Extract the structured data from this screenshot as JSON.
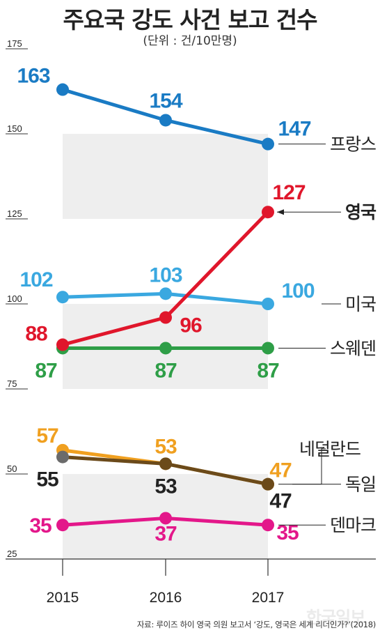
{
  "title": "주요국 강도 사건 보고 건수",
  "unit": "(단위 : 건/10만명)",
  "source": "자료: 루이즈 하이 영국 의원 보고서 ‘강도, 영국은 세계 리더인가?’(2018)",
  "watermark": "한국일보",
  "colors": {
    "france": "#1a7bc4",
    "uk": "#e0162b",
    "usa": "#3aa8e0",
    "sweden": "#2e9e47",
    "netherlands": "#f0a020",
    "germany": "#6b4a1a",
    "germany_2015_marker": "#6b6b6b",
    "denmark": "#e3178a",
    "band": "#eeeeee",
    "axis": "#333333"
  },
  "chart_data": {
    "type": "line",
    "title": "주요국 강도 사건 보고 건수",
    "subtitle": "(단위 : 건/10만명)",
    "xlabel": "",
    "ylabel": "",
    "x": [
      "2015",
      "2016",
      "2017"
    ],
    "ylim": [
      25,
      175
    ],
    "yticks": [
      "175",
      "150",
      "125",
      "100",
      "75",
      "50",
      "25"
    ],
    "grid": false,
    "legend": "direct labels at right end of lines",
    "series": [
      {
        "name": "프랑스",
        "key": "france",
        "values": [
          163,
          154,
          147
        ],
        "labels": [
          "163",
          "154",
          "147"
        ]
      },
      {
        "name": "영국",
        "key": "uk",
        "values": [
          88,
          96,
          127
        ],
        "labels": [
          "88",
          "96",
          "127"
        ],
        "emphasis": true
      },
      {
        "name": "미국",
        "key": "usa",
        "values": [
          102,
          103,
          100
        ],
        "labels": [
          "102",
          "103",
          "100"
        ]
      },
      {
        "name": "스웨덴",
        "key": "sweden",
        "values": [
          87,
          87,
          87
        ],
        "labels": [
          "87",
          "87",
          "87"
        ]
      },
      {
        "name": "네덜란드",
        "key": "netherlands",
        "values": [
          57,
          53,
          47
        ],
        "labels": [
          "57",
          "53",
          "47"
        ]
      },
      {
        "name": "독일",
        "key": "germany",
        "values": [
          55,
          53,
          47
        ],
        "labels": [
          "55",
          "53",
          "47"
        ]
      },
      {
        "name": "덴마크",
        "key": "denmark",
        "values": [
          35,
          37,
          35
        ],
        "labels": [
          "35",
          "37",
          "35"
        ]
      }
    ]
  }
}
